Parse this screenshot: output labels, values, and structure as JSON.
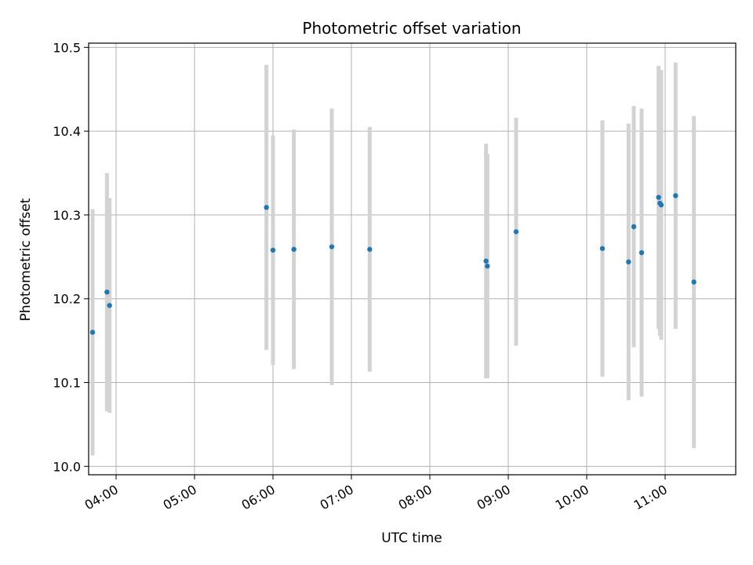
{
  "chart_data": {
    "type": "scatter",
    "title": "Photometric offset variation",
    "xlabel": "UTC time",
    "ylabel": "Photometric offset",
    "xlim": [
      "03:39",
      "11:54"
    ],
    "ylim": [
      9.99,
      10.505
    ],
    "x_ticks": [
      "04:00",
      "05:00",
      "06:00",
      "07:00",
      "08:00",
      "09:00",
      "10:00",
      "11:00"
    ],
    "y_ticks": [
      10.0,
      10.1,
      10.2,
      10.3,
      10.4,
      10.5
    ],
    "y_tick_labels": [
      "10.0",
      "10.1",
      "10.2",
      "10.3",
      "10.4",
      "10.5"
    ],
    "grid": true,
    "marker_color": "#1f77b4",
    "errorbar_color": "#d3d3d3",
    "points": [
      {
        "time": "03:42",
        "y": 10.16,
        "yerr": 0.147
      },
      {
        "time": "03:53",
        "y": 10.208,
        "yerr": 0.142
      },
      {
        "time": "03:55",
        "y": 10.192,
        "yerr": 0.128
      },
      {
        "time": "05:55",
        "y": 10.309,
        "yerr": 0.17
      },
      {
        "time": "06:00",
        "y": 10.258,
        "yerr": 0.137
      },
      {
        "time": "06:16",
        "y": 10.259,
        "yerr": 0.143
      },
      {
        "time": "06:45",
        "y": 10.262,
        "yerr": 0.165
      },
      {
        "time": "07:14",
        "y": 10.259,
        "yerr": 0.146
      },
      {
        "time": "08:43",
        "y": 10.245,
        "yerr": 0.14
      },
      {
        "time": "08:44",
        "y": 10.239,
        "yerr": 0.134
      },
      {
        "time": "09:06",
        "y": 10.28,
        "yerr": 0.136
      },
      {
        "time": "10:12",
        "y": 10.26,
        "yerr": 0.153
      },
      {
        "time": "10:32",
        "y": 10.244,
        "yerr": 0.165
      },
      {
        "time": "10:36",
        "y": 10.286,
        "yerr": 0.144
      },
      {
        "time": "10:42",
        "y": 10.255,
        "yerr": 0.172
      },
      {
        "time": "10:55",
        "y": 10.321,
        "yerr": 0.157
      },
      {
        "time": "10:56",
        "y": 10.314,
        "yerr": 0.158
      },
      {
        "time": "10:57",
        "y": 10.312,
        "yerr": 0.161
      },
      {
        "time": "11:08",
        "y": 10.323,
        "yerr": 0.159
      },
      {
        "time": "11:22",
        "y": 10.22,
        "yerr": 0.198
      }
    ]
  }
}
